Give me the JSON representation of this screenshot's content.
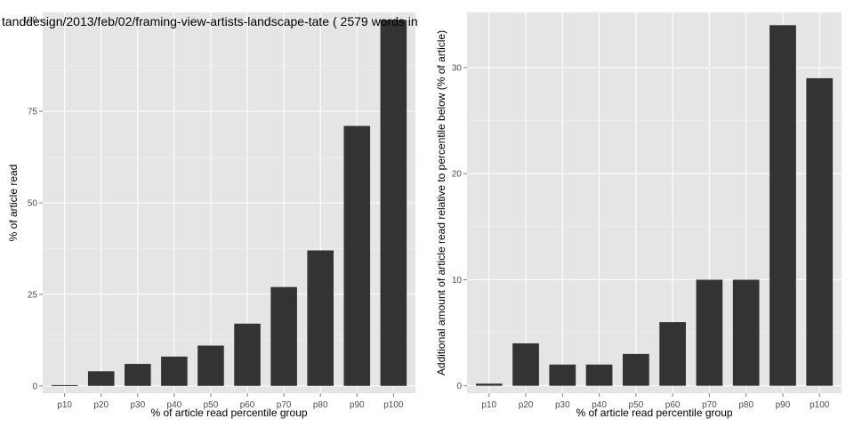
{
  "colors": {
    "panel_background": "#e5e5e5",
    "grid_major": "#ffffff",
    "grid_minor": "#f2f2f2",
    "bar_fill": "#333333",
    "tick_text": "#4d4d4d"
  },
  "chart_data": [
    {
      "type": "bar",
      "title": "tanddesign/2013/feb/02/framing-view-artists-landscape-tate ( 2579 words in",
      "xlabel": "% of article read percentile group",
      "ylabel": "% of article read",
      "categories": [
        "p10",
        "p20",
        "p30",
        "p40",
        "p50",
        "p60",
        "p70",
        "p80",
        "p90",
        "p100"
      ],
      "values": [
        0.2,
        4,
        6,
        8,
        11,
        17,
        27,
        37,
        71,
        100
      ],
      "ylim": [
        -2,
        102
      ],
      "yticks": [
        0,
        25,
        50,
        75,
        100
      ],
      "grid": true
    },
    {
      "type": "bar",
      "title": "",
      "xlabel": "% of article read percentile group",
      "ylabel": "Additional amount of article read relative to percentile below (% of article)",
      "categories": [
        "p10",
        "p20",
        "p30",
        "p40",
        "p50",
        "p60",
        "p70",
        "p80",
        "p90",
        "p100"
      ],
      "values": [
        0.2,
        4,
        2,
        2,
        3,
        6,
        10,
        10,
        34,
        29
      ],
      "ylim": [
        -0.7,
        35.2
      ],
      "yticks": [
        0,
        10,
        20,
        30
      ],
      "grid": true
    }
  ]
}
